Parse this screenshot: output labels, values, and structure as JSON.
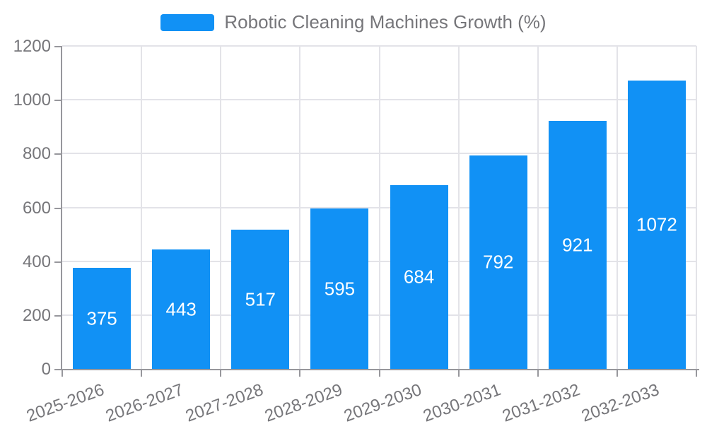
{
  "legend": {
    "label": "Robotic Cleaning Machines Growth (%)"
  },
  "chart_data": {
    "type": "bar",
    "title": "Robotic Cleaning Machines Growth (%)",
    "categories": [
      "2025-2026",
      "2026-2027",
      "2027-2028",
      "2028-2029",
      "2029-2030",
      "2030-2031",
      "2031-2032",
      "2032-2033"
    ],
    "values": [
      375,
      443,
      517,
      595,
      684,
      792,
      921,
      1072
    ],
    "xlabel": "",
    "ylabel": "",
    "ylim": [
      0,
      1200
    ],
    "yticks": [
      0,
      200,
      400,
      600,
      800,
      1000,
      1200
    ],
    "grid": true,
    "legend_position": "top-center",
    "bar_labels_position": "inside-center",
    "bar_color": "#1191f5",
    "bar_label_color": "#ffffff",
    "grid_color": "#e3e3e8",
    "axis_color": "#97979c",
    "text_color": "#76767a",
    "background_color": "#ffffff"
  }
}
